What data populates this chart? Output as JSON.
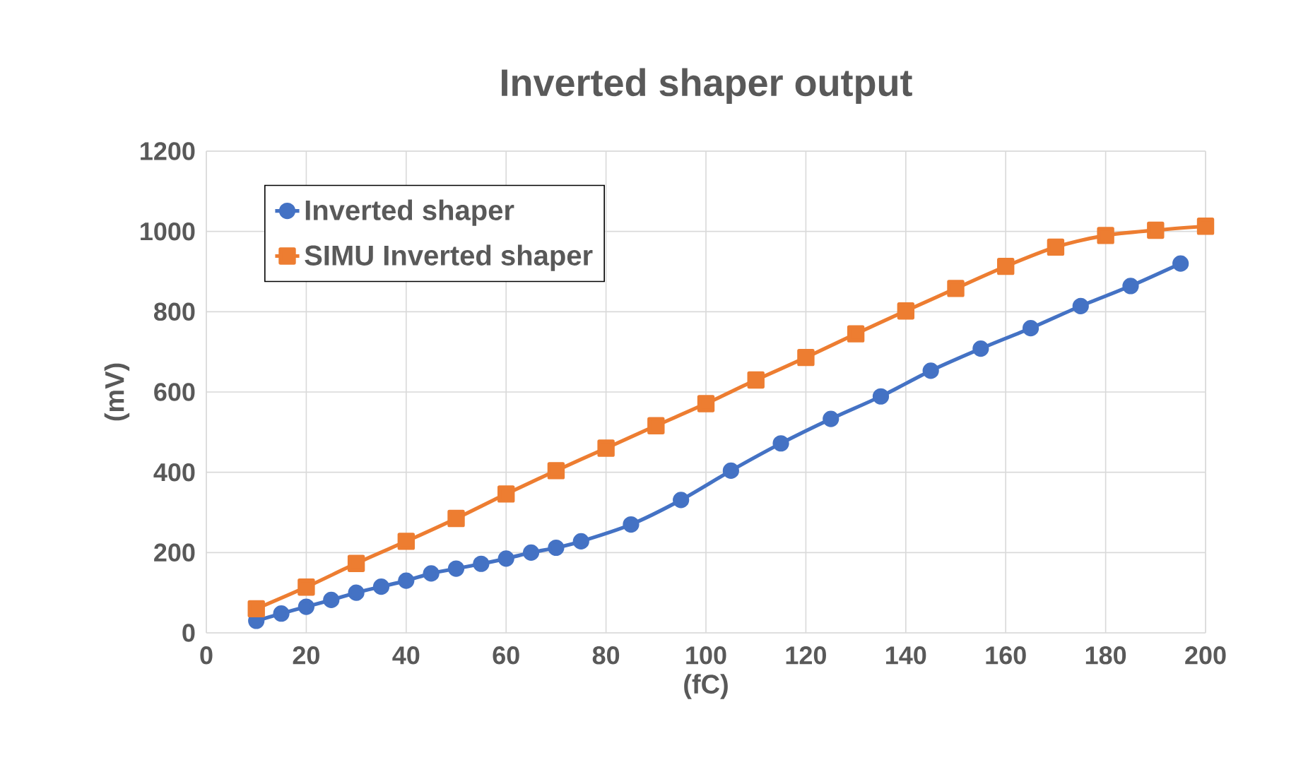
{
  "chart_data": {
    "type": "line",
    "title": "Inverted shaper output",
    "xlabel": "(fC)",
    "ylabel": "(mV)",
    "xlim": [
      0,
      200
    ],
    "xticks": [
      0,
      20,
      40,
      60,
      80,
      100,
      120,
      140,
      160,
      180,
      200
    ],
    "ylim": [
      0,
      1200
    ],
    "yticks": [
      0,
      200,
      400,
      600,
      800,
      1000,
      1200
    ],
    "grid": true,
    "legend": "top left",
    "series": [
      {
        "name": "Inverted shaper",
        "color": "#4472c4",
        "marker": "circle",
        "x": [
          10,
          15,
          20,
          25,
          30,
          35,
          40,
          45,
          50,
          55,
          60,
          65,
          70,
          75,
          85,
          95,
          105,
          115,
          125,
          135,
          145,
          155,
          165,
          175,
          185,
          195
        ],
        "values": [
          30,
          48,
          65,
          82,
          100,
          115,
          130,
          148,
          160,
          172,
          185,
          200,
          212,
          228,
          270,
          331,
          404,
          472,
          533,
          589,
          653,
          708,
          759,
          814,
          864,
          920
        ]
      },
      {
        "name": "SIMU Inverted shaper",
        "color": "#ed7d31",
        "marker": "square",
        "x": [
          10,
          20,
          30,
          40,
          50,
          60,
          70,
          80,
          90,
          100,
          110,
          120,
          130,
          140,
          150,
          160,
          170,
          180,
          190,
          200
        ],
        "values": [
          60,
          114,
          173,
          228,
          285,
          346,
          404,
          460,
          516,
          571,
          630,
          686,
          745,
          802,
          858,
          913,
          961,
          990,
          1003,
          1013
        ]
      }
    ]
  }
}
